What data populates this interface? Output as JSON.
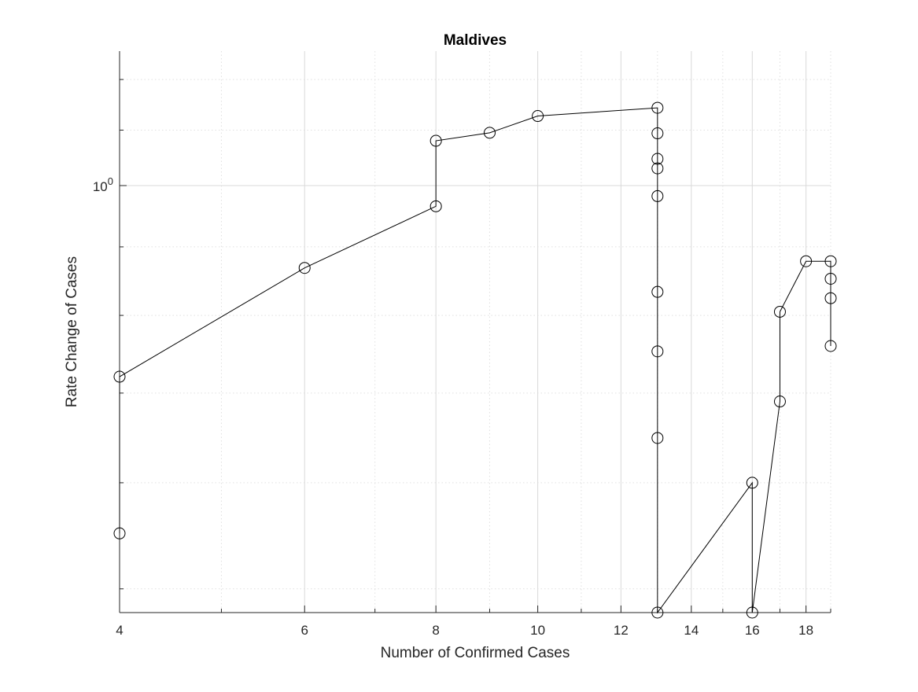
{
  "chart_data": {
    "type": "line",
    "title": "Maldives",
    "xlabel": "Number of Confirmed Cases",
    "ylabel": "Rate Change of Cases",
    "x_scale": "log",
    "y_scale": "log",
    "xlim": [
      4,
      19
    ],
    "ylim": [
      0.48,
      1.26
    ],
    "x_ticks": [
      4,
      6,
      8,
      10,
      12,
      14,
      16,
      18
    ],
    "x_tick_labels": [
      "4",
      "6",
      "8",
      "10",
      "12",
      "14",
      "16",
      "18"
    ],
    "y_ticks": [
      1
    ],
    "y_tick_labels": [
      {
        "base": "10",
        "exp": "0"
      }
    ],
    "x_minor_ticks": [
      5,
      7,
      9,
      11,
      13,
      15,
      17,
      19
    ],
    "y_minor_ticks": [
      0.5,
      0.6,
      0.7,
      0.8,
      0.9,
      1.1,
      1.2
    ],
    "grid": true,
    "marker": "open-circle",
    "line_color": "#000000",
    "series": [
      {
        "x": [
          4,
          4,
          6,
          8,
          8,
          9,
          10,
          13,
          13,
          13,
          13,
          13,
          13,
          13,
          13,
          13,
          16,
          16,
          17,
          17,
          18,
          19,
          19,
          19,
          19
        ],
        "y": [
          0.55,
          0.72,
          0.868,
          0.965,
          1.08,
          1.095,
          1.127,
          1.143,
          1.094,
          1.047,
          1.03,
          0.982,
          0.833,
          0.752,
          0.648,
          0.48,
          0.6,
          0.48,
          0.69,
          0.805,
          0.878,
          0.878,
          0.852,
          0.824,
          0.759
        ]
      }
    ]
  }
}
